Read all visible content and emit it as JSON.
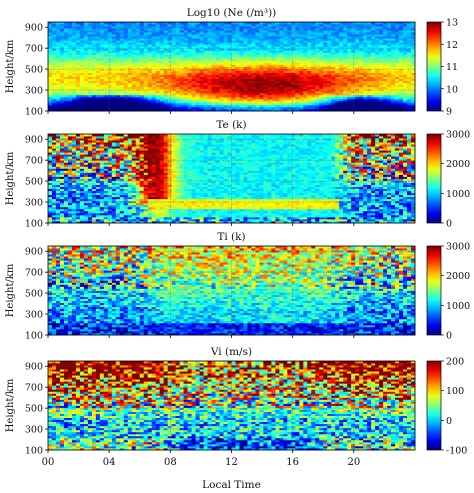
{
  "chart_data": {
    "type": "heatmap",
    "xlabel": "Local Time",
    "xlim": [
      0,
      24
    ],
    "xticks": [
      "00",
      "04",
      "08",
      "12",
      "16",
      "20"
    ],
    "xtick_values": [
      0,
      4,
      8,
      12,
      16,
      20
    ],
    "panels": [
      {
        "title": "Log10 (Ne (/m³))",
        "ylabel": "Height/km",
        "ylim": [
          100,
          950
        ],
        "yticks": [
          "100",
          "300",
          "500",
          "700",
          "900"
        ],
        "ytick_values": [
          100,
          300,
          500,
          700,
          900
        ],
        "colorbar": {
          "min": 9,
          "max": 13,
          "ticks": [
            "9",
            "10",
            "11",
            "12",
            "13"
          ],
          "tick_values": [
            9,
            10,
            11,
            12,
            13
          ]
        },
        "grid": true
      },
      {
        "title": "Te (k)",
        "ylabel": "Height/km",
        "ylim": [
          100,
          950
        ],
        "yticks": [
          "100",
          "300",
          "500",
          "700",
          "900"
        ],
        "ytick_values": [
          100,
          300,
          500,
          700,
          900
        ],
        "colorbar": {
          "min": 0,
          "max": 3000,
          "ticks": [
            "0",
            "1000",
            "2000",
            "3000"
          ],
          "tick_values": [
            0,
            1000,
            2000,
            3000
          ]
        },
        "grid": true
      },
      {
        "title": "Ti (k)",
        "ylabel": "Height/km",
        "ylim": [
          100,
          950
        ],
        "yticks": [
          "100",
          "300",
          "500",
          "700",
          "900"
        ],
        "ytick_values": [
          100,
          300,
          500,
          700,
          900
        ],
        "colorbar": {
          "min": 0,
          "max": 3000,
          "ticks": [
            "0",
            "1000",
            "2000",
            "3000"
          ],
          "tick_values": [
            0,
            1000,
            2000,
            3000
          ]
        },
        "grid": true
      },
      {
        "title": "Vi (m/s)",
        "ylabel": "Height/km",
        "ylim": [
          100,
          950
        ],
        "yticks": [
          "100",
          "300",
          "500",
          "700",
          "900"
        ],
        "ytick_values": [
          100,
          300,
          500,
          700,
          900
        ],
        "colorbar": {
          "min": -100,
          "max": 200,
          "ticks": [
            "-100",
            "0",
            "100",
            "200"
          ],
          "tick_values": [
            -100,
            0,
            100,
            200
          ]
        },
        "grid": true
      }
    ]
  }
}
